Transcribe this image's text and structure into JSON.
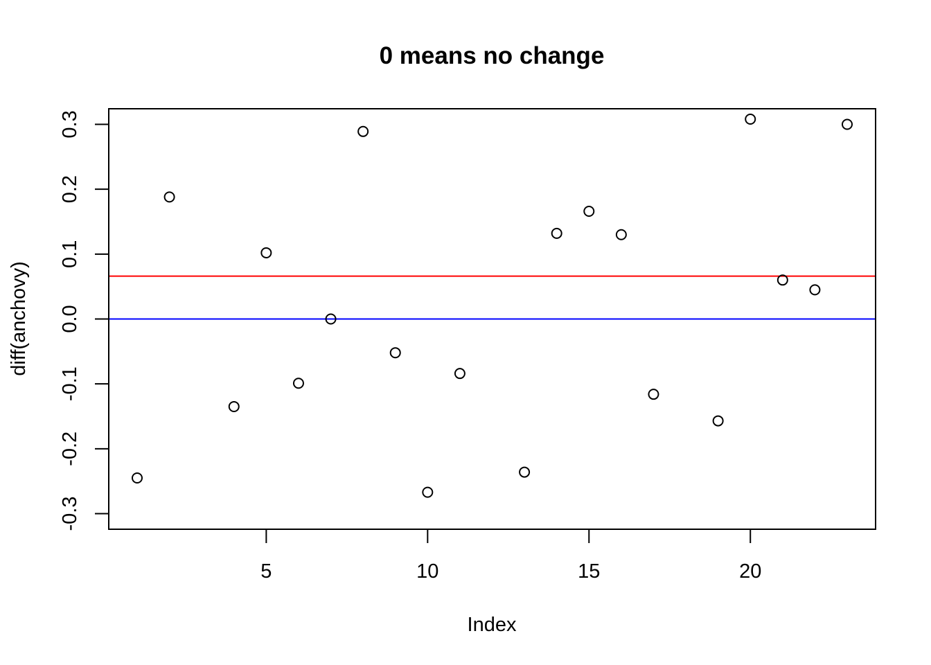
{
  "chart_data": {
    "type": "scatter",
    "title": "0 means no change",
    "xlabel": "Index",
    "ylabel": "diff(anchovy)",
    "xlim": [
      0.12,
      23.88
    ],
    "ylim": [
      -0.324,
      0.324
    ],
    "x_ticks": [
      5,
      10,
      15,
      20
    ],
    "x_tick_labels": [
      "5",
      "10",
      "15",
      "20"
    ],
    "y_ticks": [
      -0.3,
      -0.2,
      -0.1,
      0.0,
      0.1,
      0.2,
      0.3
    ],
    "y_tick_labels": [
      "-0.3",
      "-0.2",
      "-0.1",
      "0.0",
      "0.1",
      "0.2",
      "0.3"
    ],
    "grid": false,
    "series": [
      {
        "marker": "open-circle",
        "color": "#000000",
        "x": [
          1,
          2,
          4,
          5,
          6,
          7,
          8,
          9,
          10,
          11,
          13,
          14,
          15,
          16,
          17,
          19,
          20,
          21,
          22,
          23
        ],
        "y": [
          -0.245,
          0.188,
          -0.135,
          0.102,
          -0.099,
          0.0,
          0.289,
          -0.052,
          -0.267,
          -0.084,
          -0.236,
          0.132,
          0.166,
          0.13,
          -0.116,
          -0.157,
          0.308,
          0.06,
          0.045,
          0.3
        ]
      }
    ],
    "hlines": [
      {
        "y": 0.066,
        "color": "#ff0000"
      },
      {
        "y": 0.0,
        "color": "#0000ff"
      }
    ]
  }
}
